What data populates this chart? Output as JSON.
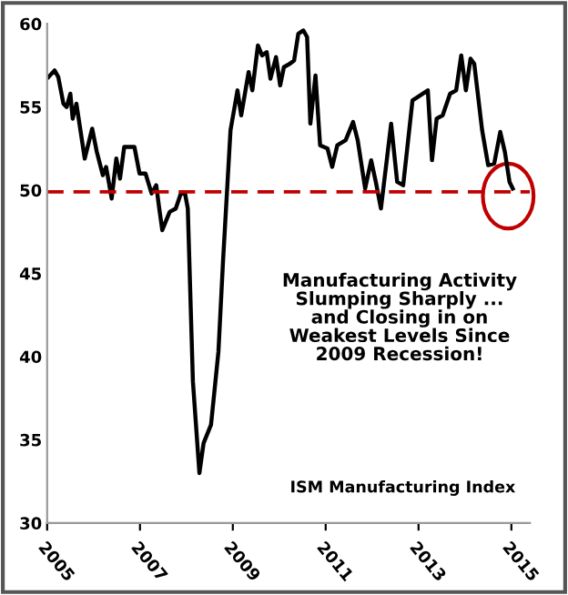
{
  "chart_data": {
    "type": "line",
    "x": [
      2005.03,
      2005.16,
      2005.24,
      2005.35,
      2005.42,
      2005.5,
      2005.55,
      2005.63,
      2005.81,
      2005.97,
      2006.07,
      2006.2,
      2006.27,
      2006.39,
      2006.49,
      2006.57,
      2006.66,
      2006.88,
      2006.99,
      2007.12,
      2007.25,
      2007.35,
      2007.41,
      2007.48,
      2007.64,
      2007.77,
      2007.88,
      2007.97,
      2008.03,
      2008.14,
      2008.28,
      2008.37,
      2008.53,
      2008.69,
      2008.79,
      2008.95,
      2009.1,
      2009.18,
      2009.34,
      2009.42,
      2009.54,
      2009.63,
      2009.73,
      2009.81,
      2009.93,
      2010.02,
      2010.1,
      2010.23,
      2010.32,
      2010.41,
      2010.52,
      2010.6,
      2010.67,
      2010.78,
      2010.88,
      2011.04,
      2011.14,
      2011.25,
      2011.43,
      2011.59,
      2011.69,
      2011.85,
      2011.98,
      2012.08,
      2012.19,
      2012.41,
      2012.54,
      2012.67,
      2012.87,
      2013.2,
      2013.29,
      2013.39,
      2013.52,
      2013.68,
      2013.81,
      2013.92,
      2014.02,
      2014.12,
      2014.2,
      2014.37,
      2014.5,
      2014.63,
      2014.76,
      2014.86,
      2014.96,
      2015.03
    ],
    "series": [
      {
        "color": "#000000",
        "values": [
          56.8,
          57.2,
          56.8,
          55.2,
          55.0,
          55.8,
          54.3,
          55.2,
          51.9,
          53.7,
          52.3,
          50.9,
          51.4,
          49.5,
          51.9,
          50.7,
          52.6,
          52.6,
          51.0,
          51.0,
          49.8,
          50.3,
          49.0,
          47.6,
          48.7,
          48.9,
          49.8,
          49.8,
          48.9,
          38.5,
          33.0,
          34.8,
          35.9,
          40.3,
          45.8,
          53.6,
          56.0,
          54.5,
          57.1,
          56.0,
          58.7,
          58.1,
          58.3,
          56.7,
          58.0,
          56.3,
          57.4,
          57.6,
          57.8,
          59.4,
          59.6,
          59.2,
          54.0,
          56.9,
          52.7,
          52.5,
          51.4,
          52.7,
          53.0,
          54.1,
          53.0,
          50.1,
          51.8,
          50.5,
          48.9,
          54.0,
          50.5,
          50.3,
          55.4,
          56.0,
          51.8,
          54.3,
          54.5,
          55.8,
          56.0,
          58.1,
          56.0,
          57.9,
          57.6,
          53.6,
          51.5,
          51.6,
          53.5,
          52.3,
          50.5,
          50.1
        ]
      }
    ],
    "xlim": [
      2005,
      2015.4
    ],
    "xticks": [
      2005,
      2007,
      2009,
      2011,
      2013,
      2015
    ],
    "ylim": [
      30,
      60
    ],
    "yticks": [
      30,
      35,
      40,
      45,
      50,
      55,
      60
    ],
    "ref_lines": [
      {
        "axis": "y",
        "value": 49.9,
        "color": "#c00000",
        "line_style": "dashed"
      }
    ],
    "annotations": [
      "Manufacturing Activity\nSlumping Sharply ...\nand Closing in on\nWeakest Levels Since\n2009 Recession!",
      "ISM Manufacturing Index"
    ],
    "grid": false,
    "marker": "none",
    "line_style": "solid"
  }
}
